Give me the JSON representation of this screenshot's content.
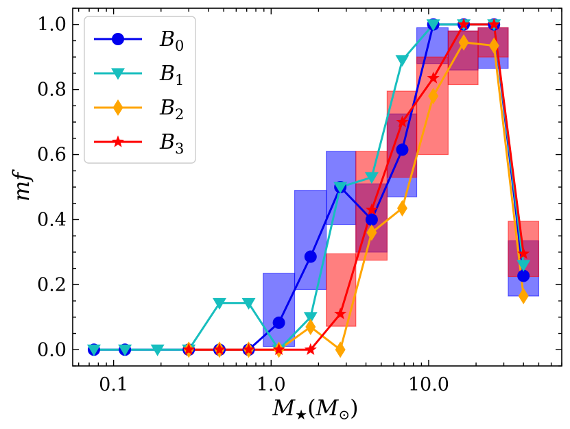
{
  "chart_data": {
    "type": "line",
    "title": "",
    "xlabel": "M★(M⊙)",
    "xlabel_parts": {
      "main": "M",
      "sub": "★",
      "paren_main": "M",
      "paren_sub": "⊙"
    },
    "ylabel": "mf",
    "xscale": "log",
    "xlim": [
      0.055,
      70
    ],
    "ylim": [
      -0.05,
      1.05
    ],
    "xticks": [
      {
        "value": 0.1,
        "label": "0.1"
      },
      {
        "value": 1.0,
        "label": "1.0"
      },
      {
        "value": 10.0,
        "label": "10.0"
      }
    ],
    "yticks": [
      {
        "value": 0.0,
        "label": "0.0"
      },
      {
        "value": 0.2,
        "label": "0.2"
      },
      {
        "value": 0.4,
        "label": "0.4"
      },
      {
        "value": 0.6,
        "label": "0.6"
      },
      {
        "value": 0.8,
        "label": "0.8"
      },
      {
        "value": 1.0,
        "label": "1.0"
      }
    ],
    "legend_position": "upper-left",
    "series": [
      {
        "name": "B0",
        "label_main": "B",
        "label_sub": "0",
        "color": "#0000ee",
        "marker": "circle",
        "x": [
          0.075,
          0.118,
          0.3,
          0.47,
          0.72,
          1.12,
          1.78,
          2.75,
          4.35,
          6.8,
          10.7,
          16.7,
          26.0,
          40.0
        ],
        "y": [
          0.0,
          0.0,
          0.0,
          0.0,
          0.0,
          0.083,
          0.286,
          0.5,
          0.4,
          0.615,
          1.0,
          1.0,
          1.0,
          0.227
        ]
      },
      {
        "name": "B1",
        "label_main": "B",
        "label_sub": "1",
        "color": "#17bebe",
        "marker": "triangle-down",
        "x": [
          0.075,
          0.118,
          0.19,
          0.3,
          0.47,
          0.72,
          1.12,
          1.78,
          2.75,
          4.35,
          6.8,
          10.7,
          16.7,
          26.0,
          40.0
        ],
        "y": [
          0.0,
          0.0,
          0.0,
          0.0,
          0.143,
          0.143,
          0.0,
          0.1,
          0.5,
          0.53,
          0.89,
          1.0,
          1.0,
          1.0,
          0.26
        ]
      },
      {
        "name": "B2",
        "label_main": "B",
        "label_sub": "2",
        "color": "#ffa500",
        "marker": "diamond",
        "x": [
          0.3,
          0.47,
          0.72,
          1.12,
          1.78,
          2.75,
          4.35,
          6.8,
          10.7,
          16.7,
          26.0,
          40.0
        ],
        "y": [
          0.0,
          0.0,
          0.0,
          0.0,
          0.07,
          0.0,
          0.36,
          0.435,
          0.78,
          0.945,
          0.935,
          0.165
        ]
      },
      {
        "name": "B3",
        "label_main": "B",
        "label_sub": "3",
        "color": "#ff0000",
        "marker": "star",
        "x": [
          0.3,
          0.47,
          0.72,
          1.12,
          1.78,
          2.75,
          4.35,
          6.8,
          10.7,
          16.7,
          26.0,
          40.0
        ],
        "y": [
          0.0,
          0.0,
          0.0,
          0.0,
          0.0,
          0.11,
          0.43,
          0.7,
          0.835,
          1.0,
          1.0,
          0.295
        ]
      }
    ],
    "error_boxes": [
      {
        "series": "B0",
        "color": "#0000ff",
        "boxes": [
          {
            "x0": 0.89,
            "x1": 1.41,
            "y0": 0.01,
            "y1": 0.235
          },
          {
            "x0": 1.41,
            "x1": 2.24,
            "y0": 0.185,
            "y1": 0.49
          },
          {
            "x0": 2.24,
            "x1": 3.45,
            "y0": 0.385,
            "y1": 0.61
          },
          {
            "x0": 3.45,
            "x1": 5.45,
            "y0": 0.3,
            "y1": 0.51
          },
          {
            "x0": 5.45,
            "x1": 8.4,
            "y0": 0.47,
            "y1": 0.725
          },
          {
            "x0": 8.4,
            "x1": 13.3,
            "y0": 0.88,
            "y1": 0.99
          },
          {
            "x0": 13.3,
            "x1": 20.6,
            "y0": 0.86,
            "y1": 0.98
          },
          {
            "x0": 20.6,
            "x1": 32.0,
            "y0": 0.865,
            "y1": 0.99
          },
          {
            "x0": 32.0,
            "x1": 50.0,
            "y0": 0.165,
            "y1": 0.335
          }
        ]
      },
      {
        "series": "B3",
        "color": "#ff0000",
        "boxes": [
          {
            "x0": 2.24,
            "x1": 3.45,
            "y0": 0.072,
            "y1": 0.295
          },
          {
            "x0": 3.45,
            "x1": 5.45,
            "y0": 0.275,
            "y1": 0.61
          },
          {
            "x0": 5.45,
            "x1": 8.4,
            "y0": 0.53,
            "y1": 0.795
          },
          {
            "x0": 8.4,
            "x1": 13.3,
            "y0": 0.6,
            "y1": 0.9
          },
          {
            "x0": 13.3,
            "x1": 20.6,
            "y0": 0.815,
            "y1": 0.98
          },
          {
            "x0": 20.6,
            "x1": 32.0,
            "y0": 0.9,
            "y1": 0.99
          },
          {
            "x0": 32.0,
            "x1": 50.0,
            "y0": 0.225,
            "y1": 0.395
          }
        ]
      }
    ]
  }
}
